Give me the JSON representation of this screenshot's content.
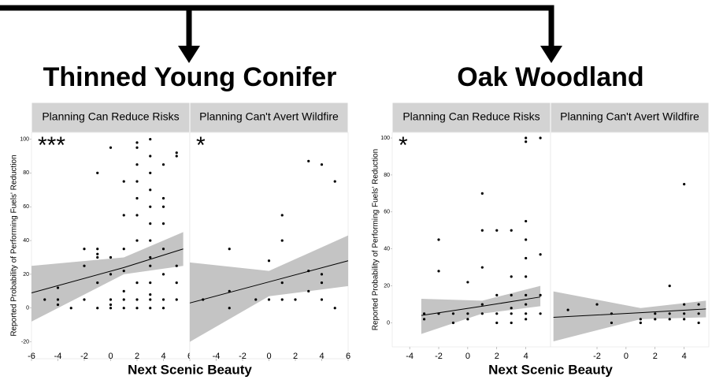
{
  "chart_data": [
    {
      "type": "scatter",
      "title": "Thinned Young Conifer",
      "xlabel": "Next Scenic Beauty",
      "ylabel": "Reported Probability of Performing Fuels' Reduction",
      "ylim": [
        -30,
        104
      ],
      "yticks": [
        -20,
        0,
        20,
        40,
        60,
        80,
        100
      ],
      "xlim": [
        -6,
        6
      ],
      "point_color": "#000000",
      "band_color": "#c4c4c4",
      "strip_color": "#d3d3d3",
      "panels": [
        {
          "strip": "Planning Can Reduce Risks",
          "annotation": "***",
          "xticks": [
            -6,
            -4,
            -2,
            0,
            2,
            4,
            6
          ],
          "x": [
            -5,
            -4,
            -4,
            -4,
            -3,
            -2,
            -2,
            -2,
            -1,
            -1,
            -1,
            -1,
            -1,
            -1,
            0,
            0,
            0,
            0,
            0,
            0,
            1,
            1,
            1,
            1,
            1,
            1,
            1,
            2,
            2,
            2,
            2,
            2,
            2,
            2,
            2,
            2,
            2,
            3,
            3,
            3,
            3,
            3,
            3,
            3,
            3,
            3,
            3,
            3,
            3,
            3,
            4,
            4,
            4,
            4,
            4,
            4,
            4,
            4,
            5,
            5,
            5,
            5,
            5
          ],
          "y": [
            5,
            12,
            5,
            2,
            0,
            35,
            25,
            5,
            35,
            32,
            30,
            80,
            15,
            0,
            95,
            30,
            20,
            5,
            2,
            0,
            75,
            55,
            35,
            22,
            10,
            5,
            0,
            98,
            95,
            85,
            75,
            65,
            55,
            40,
            15,
            5,
            0,
            100,
            90,
            80,
            70,
            60,
            50,
            40,
            30,
            25,
            15,
            8,
            5,
            0,
            85,
            65,
            60,
            50,
            35,
            20,
            5,
            0,
            92,
            90,
            25,
            15,
            5
          ],
          "fit": {
            "x": [
              -6,
              1,
              5.5
            ],
            "y": [
              9,
              24,
              35
            ],
            "lower": [
              -8,
              20,
              25
            ],
            "upper": [
              25,
              30,
              45
            ]
          }
        },
        {
          "strip": "Planning Can't Avert Wildfire",
          "annotation": "*",
          "xticks": [
            -4,
            -2,
            0,
            2,
            4,
            6
          ],
          "x": [
            -5,
            -3,
            -3,
            -3,
            -1,
            0,
            0,
            1,
            1,
            1,
            1,
            2,
            3,
            3,
            3,
            4,
            4,
            4,
            4,
            5,
            5
          ],
          "y": [
            5,
            35,
            10,
            0,
            5,
            28,
            5,
            55,
            40,
            15,
            5,
            5,
            87,
            22,
            10,
            85,
            20,
            15,
            5,
            75,
            0
          ],
          "fit": {
            "x": [
              -6,
              0,
              6
            ],
            "y": [
              3,
              15.5,
              28
            ],
            "lower": [
              -20,
              7,
              13
            ],
            "upper": [
              27,
              22,
              43
            ]
          }
        }
      ]
    },
    {
      "type": "scatter",
      "title": "Oak Woodland",
      "xlabel": "Next Scenic Beauty",
      "ylabel": "Reported Probability of Performing Fuels' Reduction",
      "ylim": [
        -13,
        103
      ],
      "yticks": [
        0,
        20,
        40,
        60,
        80,
        100
      ],
      "xlim": [
        -5.2,
        5.7
      ],
      "point_color": "#000000",
      "band_color": "#c4c4c4",
      "strip_color": "#d3d3d3",
      "panels": [
        {
          "strip": "Planning Can Reduce Risks",
          "annotation": "*",
          "xticks": [
            -4,
            -2,
            0,
            2,
            4
          ],
          "x": [
            -3,
            -3,
            -2,
            -2,
            -2,
            -1,
            -1,
            0,
            0,
            0,
            1,
            1,
            1,
            1,
            1,
            2,
            2,
            2,
            2,
            3,
            3,
            3,
            3,
            3,
            3,
            4,
            4,
            4,
            4,
            4,
            4,
            4,
            4,
            4,
            4,
            5,
            5,
            5,
            5
          ],
          "y": [
            5,
            2,
            45,
            28,
            5,
            5,
            0,
            22,
            5,
            2,
            70,
            50,
            30,
            10,
            5,
            50,
            15,
            5,
            0,
            50,
            25,
            15,
            8,
            5,
            0,
            100,
            98,
            55,
            45,
            35,
            25,
            15,
            10,
            5,
            2,
            100,
            37,
            15,
            5
          ],
          "fit": {
            "x": [
              -3.2,
              1,
              5
            ],
            "y": [
              4,
              9,
              14
            ],
            "lower": [
              -6,
              5,
              9
            ],
            "upper": [
              13,
              12,
              20
            ]
          }
        },
        {
          "strip": "Planning Can't Avert Wildfire",
          "xticks": [
            -2,
            0,
            2,
            4
          ],
          "x": [
            -4,
            -2,
            -1,
            -1,
            1,
            1,
            2,
            2,
            3,
            3,
            3,
            4,
            4,
            4,
            4,
            5,
            5,
            5
          ],
          "y": [
            7,
            10,
            5,
            0,
            2,
            0,
            5,
            2,
            20,
            5,
            2,
            75,
            10,
            5,
            2,
            10,
            5,
            0
          ],
          "fit": {
            "x": [
              -5,
              1,
              5.5
            ],
            "y": [
              3,
              5.5,
              7.5
            ],
            "lower": [
              -10,
              2,
              3
            ],
            "upper": [
              17,
              8,
              12
            ]
          }
        }
      ]
    }
  ]
}
